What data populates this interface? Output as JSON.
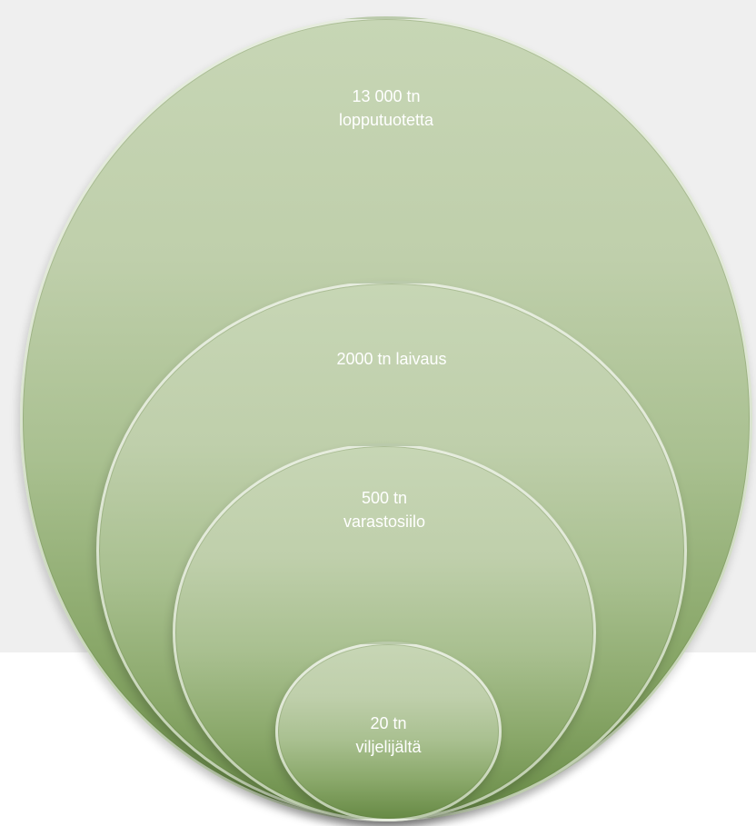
{
  "diagram": {
    "circles": [
      {
        "label": "13 000 tn\nlopputuotetta"
      },
      {
        "label": "2000 tn laivaus"
      },
      {
        "label": "500 tn\nvarastosiilo"
      },
      {
        "label": "20 tn\nviljelijältä"
      }
    ]
  }
}
